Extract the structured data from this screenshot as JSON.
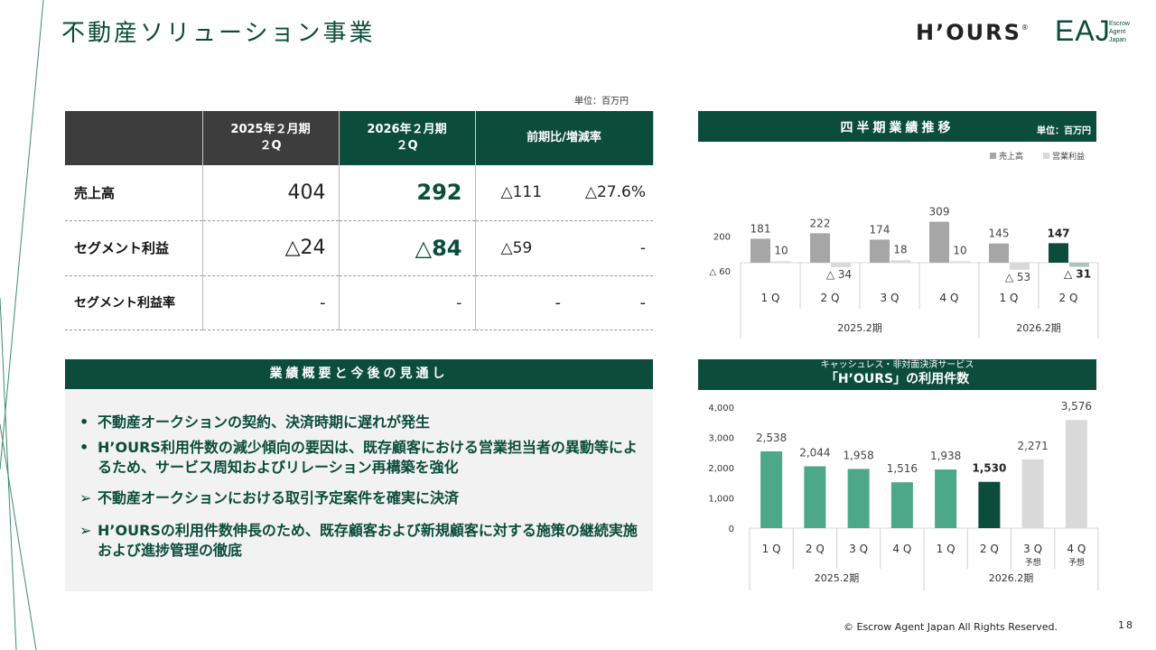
{
  "header": {
    "title": "不動産ソリューション事業",
    "logo_hours": "H’OURS",
    "logo_hours_mark": "®",
    "logo_eaj": "EAJ",
    "logo_eaj_sub": [
      "Escrow",
      "Agent",
      "Japan"
    ]
  },
  "table": {
    "unit": "単位：百万円",
    "headers": [
      "",
      "2025年２月期\n２Q",
      "2026年２月期\n２Q",
      "前期比/増減率"
    ],
    "rows": [
      {
        "label": "売上高",
        "prev": "404",
        "cur": "292",
        "diff": "△111",
        "rate": "△27.6%"
      },
      {
        "label": "セグメント利益",
        "prev": "△24",
        "cur": "△84",
        "diff": "△59",
        "rate": "-"
      },
      {
        "label": "セグメント利益率",
        "prev": "-",
        "cur": "-",
        "diff": "-",
        "rate": "-"
      }
    ]
  },
  "summary": {
    "title": "業績概要と今後の見通し",
    "bullets": [
      "不動産オークションの契約、決済時期に遅れが発生",
      "H’OURS利用件数の減少傾向の要因は、既存顧客における営業担当者の異動等によるため、サービス周知およびリレーション再構築を強化"
    ],
    "bullet_mark": "•",
    "arrows": [
      "不動産オークションにおける取引予定案件を確実に決済",
      "H’OURSの利用件数伸長のため、既存顧客および新規顧客に対する施策の継続実施および進捗管理の徹底"
    ],
    "arrow_mark": "➢"
  },
  "chart1": {
    "title": "四半期業績推移",
    "unit": "単位：百万円"
  },
  "chart2": {
    "subtitle": "キャッシュレス・非対面決済サービス",
    "title": "「H’OURS」の利用件数"
  },
  "chart_data": [
    {
      "type": "bar",
      "title": "四半期業績推移",
      "unit": "単位：百万円",
      "categories": [
        "1Q",
        "2Q",
        "3Q",
        "4Q",
        "1Q",
        "2Q"
      ],
      "category_labels": [
        "1 Q",
        "2 Q",
        "3 Q",
        "4 Q",
        "1 Q",
        "2 Q"
      ],
      "groups": [
        {
          "label": "2025.2期",
          "count": 4
        },
        {
          "label": "2026.2期",
          "count": 2
        }
      ],
      "series": [
        {
          "name": "売上高",
          "values": [
            181,
            222,
            174,
            309,
            145,
            147
          ],
          "labels": [
            "181",
            "222",
            "174",
            "309",
            "145",
            "147"
          ],
          "colors": [
            "#a6a6a6",
            "#a6a6a6",
            "#a6a6a6",
            "#a6a6a6",
            "#a6a6a6",
            "#0b4d3a"
          ]
        },
        {
          "name": "営業利益",
          "values": [
            10,
            -34,
            18,
            10,
            -53,
            -31
          ],
          "labels": [
            "10",
            "△ 34",
            "18",
            "10",
            "△ 53",
            "△ 31"
          ],
          "colors": [
            "#d9d9d9",
            "#d9d9d9",
            "#d9d9d9",
            "#d9d9d9",
            "#d9d9d9",
            "#a9c6bb"
          ]
        }
      ],
      "ylim": [
        -60,
        309
      ],
      "yticks": [
        {
          "value": 200,
          "label": "200"
        },
        {
          "value": -60,
          "label": "△ 60"
        }
      ],
      "legend": "top-right"
    },
    {
      "type": "bar",
      "title": "「H’OURS」の利用件数",
      "subtitle": "キャッシュレス・非対面決済サービス",
      "categories": [
        "1Q",
        "2Q",
        "3Q",
        "4Q",
        "1Q",
        "2Q",
        "3Q",
        "4Q"
      ],
      "category_labels": [
        "1 Q",
        "2 Q",
        "3 Q",
        "4 Q",
        "1 Q",
        "2 Q",
        "3 Q",
        "4 Q"
      ],
      "category_notes": [
        "",
        "",
        "",
        "",
        "",
        "",
        "予想",
        "予想"
      ],
      "groups": [
        {
          "label": "2025.2期",
          "count": 4
        },
        {
          "label": "2026.2期",
          "count": 4
        }
      ],
      "values": [
        2538,
        2044,
        1958,
        1516,
        1938,
        1530,
        2271,
        3576
      ],
      "labels": [
        "2,538",
        "2,044",
        "1,958",
        "1,516",
        "1,938",
        "1,530",
        "2,271",
        "3,576"
      ],
      "colors": [
        "#4da88a",
        "#4da88a",
        "#4da88a",
        "#4da88a",
        "#4da88a",
        "#0b4d3a",
        "#d9d9d9",
        "#d9d9d9"
      ],
      "ylim": [
        0,
        4000
      ],
      "yticks": [
        {
          "value": 0,
          "label": "0"
        },
        {
          "value": 1000,
          "label": "1,000"
        },
        {
          "value": 2000,
          "label": "2,000"
        },
        {
          "value": 3000,
          "label": "3,000"
        },
        {
          "value": 4000,
          "label": "4,000"
        }
      ]
    }
  ],
  "footer": {
    "copyright": "© Escrow Agent Japan All Rights Reserved.",
    "page": "18"
  }
}
